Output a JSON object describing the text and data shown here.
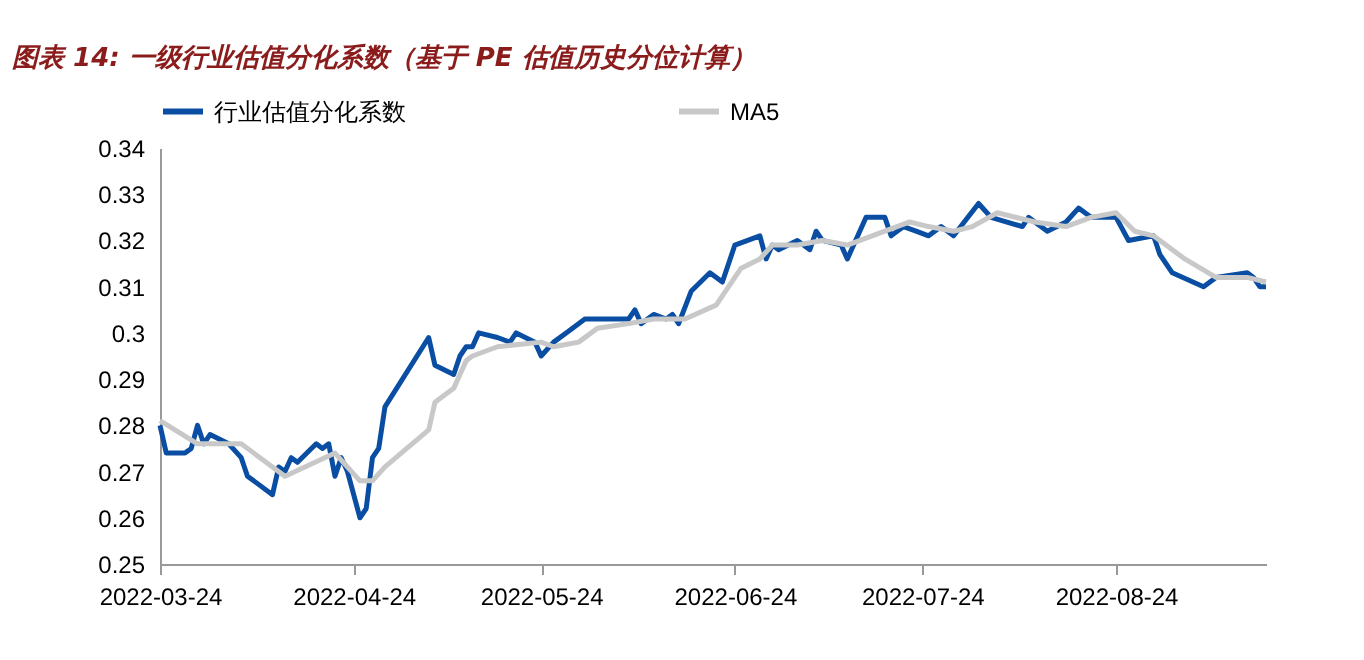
{
  "chart_data": {
    "type": "line",
    "title": "图表 14: 一级行业估值分化系数（基于 PE 估值历史分位计算）",
    "xlim": [
      "2022-03-24",
      "2022-09-17"
    ],
    "xticks": [
      "2022-03-24",
      "2022-04-24",
      "2022-05-24",
      "2022-06-24",
      "2022-07-24",
      "2022-08-24"
    ],
    "ylim": [
      0.25,
      0.34
    ],
    "yticks": [
      0.25,
      0.26,
      0.27,
      0.28,
      0.29,
      0.3,
      0.31,
      0.32,
      0.33,
      0.34
    ],
    "grid": false,
    "legend": "top",
    "line_style": "solid",
    "marker": "none",
    "series": [
      {
        "name": "行业估值分化系数",
        "color": "#0a4ea3",
        "x": [
          "2022-03-24",
          "2022-03-25",
          "2022-03-28",
          "2022-03-29",
          "2022-03-30",
          "2022-03-31",
          "2022-04-01",
          "2022-04-04",
          "2022-04-06",
          "2022-04-07",
          "2022-04-11",
          "2022-04-12",
          "2022-04-13",
          "2022-04-14",
          "2022-04-15",
          "2022-04-18",
          "2022-04-19",
          "2022-04-20",
          "2022-04-21",
          "2022-04-22",
          "2022-04-23",
          "2022-04-25",
          "2022-04-26",
          "2022-04-27",
          "2022-04-28",
          "2022-04-29",
          "2022-05-06",
          "2022-05-07",
          "2022-05-10",
          "2022-05-11",
          "2022-05-12",
          "2022-05-13",
          "2022-05-14",
          "2022-05-17",
          "2022-05-19",
          "2022-05-20",
          "2022-05-23",
          "2022-05-24",
          "2022-05-26",
          "2022-05-28",
          "2022-05-31",
          "2022-06-07",
          "2022-06-08",
          "2022-06-09",
          "2022-06-11",
          "2022-06-13",
          "2022-06-14",
          "2022-06-15",
          "2022-06-17",
          "2022-06-20",
          "2022-06-22",
          "2022-06-24",
          "2022-06-28",
          "2022-06-29",
          "2022-06-30",
          "2022-07-01",
          "2022-07-04",
          "2022-07-06",
          "2022-07-07",
          "2022-07-08",
          "2022-07-11",
          "2022-07-12",
          "2022-07-15",
          "2022-07-18",
          "2022-07-19",
          "2022-07-21",
          "2022-07-23",
          "2022-07-25",
          "2022-07-27",
          "2022-07-29",
          "2022-08-02",
          "2022-08-04",
          "2022-08-09",
          "2022-08-10",
          "2022-08-11",
          "2022-08-13",
          "2022-08-16",
          "2022-08-18",
          "2022-08-20",
          "2022-08-24",
          "2022-08-26",
          "2022-08-30",
          "2022-08-31",
          "2022-09-02",
          "2022-09-07",
          "2022-09-09",
          "2022-09-14",
          "2022-09-15",
          "2022-09-16",
          "2022-09-17"
        ],
        "values": [
          0.28,
          0.274,
          0.274,
          0.275,
          0.28,
          0.276,
          0.278,
          0.276,
          0.273,
          0.269,
          0.265,
          0.271,
          0.27,
          0.273,
          0.272,
          0.276,
          0.275,
          0.276,
          0.269,
          0.273,
          0.27,
          0.26,
          0.262,
          0.273,
          0.275,
          0.284,
          0.299,
          0.293,
          0.291,
          0.295,
          0.297,
          0.297,
          0.3,
          0.299,
          0.298,
          0.3,
          0.298,
          0.295,
          0.298,
          0.3,
          0.303,
          0.303,
          0.305,
          0.302,
          0.304,
          0.303,
          0.304,
          0.302,
          0.309,
          0.313,
          0.311,
          0.319,
          0.321,
          0.316,
          0.319,
          0.318,
          0.32,
          0.318,
          0.322,
          0.32,
          0.319,
          0.316,
          0.325,
          0.325,
          0.321,
          0.323,
          0.322,
          0.321,
          0.323,
          0.321,
          0.328,
          0.325,
          0.323,
          0.325,
          0.324,
          0.322,
          0.324,
          0.327,
          0.325,
          0.325,
          0.32,
          0.321,
          0.317,
          0.313,
          0.31,
          0.312,
          0.313,
          0.312,
          0.31,
          0.31
        ]
      },
      {
        "name": "MA5",
        "color": "#c8c8c8",
        "x": [
          "2022-03-24",
          "2022-03-30",
          "2022-04-06",
          "2022-04-09",
          "2022-04-13",
          "2022-04-21",
          "2022-04-25",
          "2022-04-27",
          "2022-04-29",
          "2022-05-06",
          "2022-05-07",
          "2022-05-10",
          "2022-05-12",
          "2022-05-13",
          "2022-05-17",
          "2022-05-24",
          "2022-05-26",
          "2022-05-30",
          "2022-06-02",
          "2022-06-07",
          "2022-06-11",
          "2022-06-16",
          "2022-06-21",
          "2022-06-22",
          "2022-06-25",
          "2022-06-28",
          "2022-06-30",
          "2022-07-04",
          "2022-07-08",
          "2022-07-12",
          "2022-07-18",
          "2022-07-22",
          "2022-07-25",
          "2022-07-29",
          "2022-08-01",
          "2022-08-05",
          "2022-08-11",
          "2022-08-16",
          "2022-08-20",
          "2022-08-24",
          "2022-08-27",
          "2022-08-30",
          "2022-09-04",
          "2022-09-09",
          "2022-09-14",
          "2022-09-17"
        ],
        "values": [
          0.281,
          0.276,
          0.276,
          0.273,
          0.269,
          0.274,
          0.268,
          0.268,
          0.271,
          0.279,
          0.285,
          0.288,
          0.294,
          0.295,
          0.297,
          0.298,
          0.297,
          0.298,
          0.301,
          0.302,
          0.303,
          0.303,
          0.306,
          0.308,
          0.314,
          0.316,
          0.319,
          0.319,
          0.32,
          0.319,
          0.322,
          0.324,
          0.323,
          0.322,
          0.323,
          0.326,
          0.324,
          0.323,
          0.325,
          0.326,
          0.322,
          0.321,
          0.316,
          0.312,
          0.312,
          0.311
        ]
      }
    ]
  }
}
